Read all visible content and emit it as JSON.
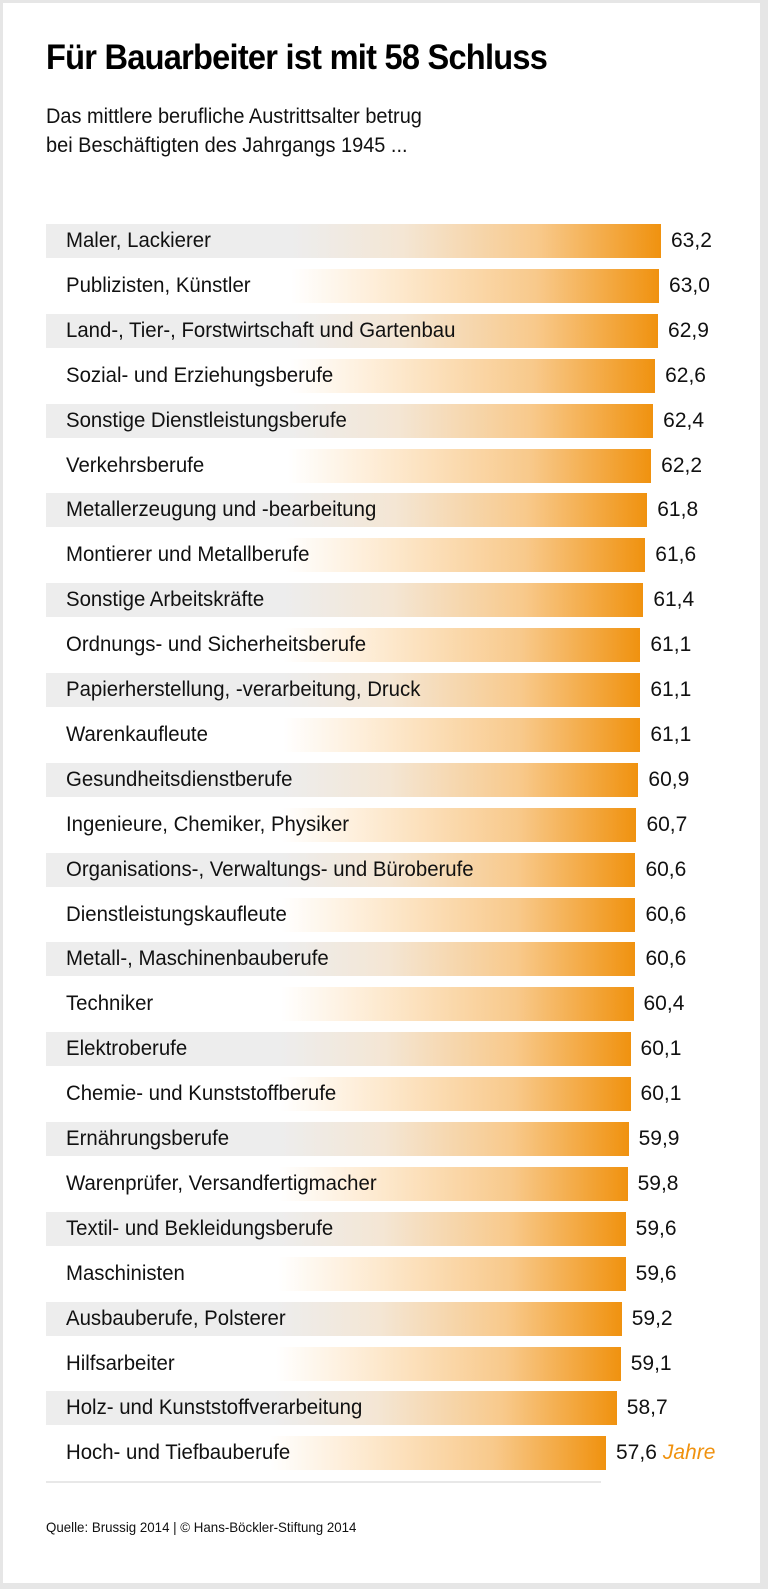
{
  "header": {
    "title": "Für Bauarbeiter ist mit 58 Schluss",
    "subtitle_line1": "Das mittlere berufliche Austrittsalter betrug",
    "subtitle_line2": "bei Beschäftigten des Jahrgangs 1945 ..."
  },
  "footer": {
    "source": "Quelle: Brussig 2014 | © Hans-Böckler-Stiftung 2014"
  },
  "colors": {
    "accent": "#f0920f",
    "row_grey": "#ededed"
  },
  "chart_data": {
    "type": "bar",
    "orientation": "horizontal",
    "title": "Für Bauarbeiter ist mit 58 Schluss",
    "subtitle": "Das mittlere berufliche Austrittsalter betrug bei Beschäftigten des Jahrgangs 1945 ...",
    "xlabel": "",
    "ylabel": "",
    "unit": "Jahre",
    "decimal_separator": ",",
    "grid": false,
    "legend": "none",
    "categories": [
      "Maler, Lackierer",
      "Publizisten, Künstler",
      "Land-, Tier-, Forstwirtschaft und Gartenbau",
      "Sozial- und Erziehungsberufe",
      "Sonstige Dienstleistungsberufe",
      "Verkehrsberufe",
      "Metallerzeugung und -bearbeitung",
      "Montierer und Metallberufe",
      "Sonstige Arbeitskräfte",
      "Ordnungs- und Sicherheitsberufe",
      "Papierherstellung, -verarbeitung, Druck",
      "Warenkaufleute",
      "Gesundheitsdienstberufe",
      "Ingenieure, Chemiker, Physiker",
      "Organisations-, Verwaltungs- und Büroberufe",
      "Dienstleistungskaufleute",
      "Metall-, Maschinenbauberufe",
      "Techniker",
      "Elektroberufe",
      "Chemie- und Kunststoffberufe",
      "Ernährungsberufe",
      "Warenprüfer, Versandfertigmacher",
      "Textil- und Bekleidungsberufe",
      "Maschinisten",
      "Ausbauberufe, Polsterer",
      "Hilfsarbeiter",
      "Holz- und Kunststoffverarbeitung",
      "Hoch- und Tiefbauberufe"
    ],
    "values": [
      63.2,
      63.0,
      62.9,
      62.6,
      62.4,
      62.2,
      61.8,
      61.6,
      61.4,
      61.1,
      61.1,
      61.1,
      60.9,
      60.7,
      60.6,
      60.6,
      60.6,
      60.4,
      60.1,
      60.1,
      59.9,
      59.8,
      59.6,
      59.6,
      59.2,
      59.1,
      58.7,
      57.6
    ],
    "value_labels": [
      "63,2",
      "63,0",
      "62,9",
      "62,6",
      "62,4",
      "62,2",
      "61,8",
      "61,6",
      "61,4",
      "61,1",
      "61,1",
      "61,1",
      "60,9",
      "60,7",
      "60,6",
      "60,6",
      "60,6",
      "60,4",
      "60,1",
      "60,1",
      "59,9",
      "59,8",
      "59,6",
      "59,6",
      "59,2",
      "59,1",
      "58,7",
      "57,6"
    ]
  }
}
